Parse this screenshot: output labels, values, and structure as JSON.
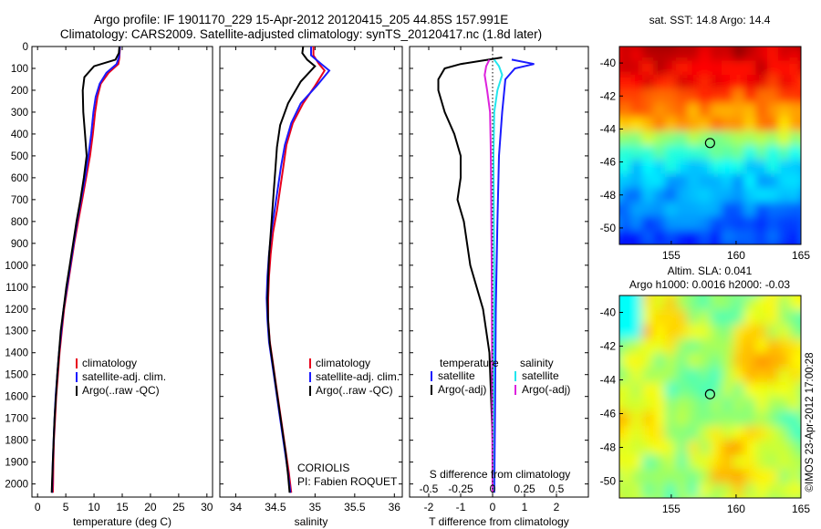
{
  "header": {
    "line1": "Argo profile: IF 1901170_229 15-Apr-2012 20120415_205 44.85S 157.991E",
    "line2": "Climatology: CARS2009. Satellite-adjusted climatology: synTS_20120417.nc (1.8d later)"
  },
  "colors": {
    "climatology": "#e8001c",
    "satellite": "#1a1aff",
    "argo": "#000000",
    "sal_satellite": "#22e6ee",
    "sal_argo": "#dd22dd"
  },
  "chart_data": [
    {
      "type": "line",
      "title": "",
      "xlabel": "temperature (deg C)",
      "ylabel": "",
      "xlim": [
        -1,
        31
      ],
      "ylim": [
        2060,
        0
      ],
      "y_inverted": true,
      "xticks": [
        0,
        5,
        10,
        15,
        20,
        25,
        30
      ],
      "yticks": [
        0,
        100,
        200,
        300,
        400,
        500,
        600,
        700,
        800,
        900,
        1000,
        1100,
        1200,
        1300,
        1400,
        1500,
        1600,
        1700,
        1800,
        1900,
        2000
      ],
      "legend": [
        "climatology",
        "satellite-adj. clim.",
        "Argo(..raw -QC)"
      ],
      "legend_position": "lower-center",
      "series": [
        {
          "name": "climatology",
          "color": "#e8001c",
          "points": [
            [
              14.6,
              0
            ],
            [
              14.5,
              50
            ],
            [
              14.3,
              80
            ],
            [
              12.6,
              120
            ],
            [
              11.2,
              170
            ],
            [
              10.6,
              230
            ],
            [
              10.2,
              300
            ],
            [
              9.8,
              400
            ],
            [
              9.3,
              500
            ],
            [
              8.6,
              600
            ],
            [
              7.9,
              700
            ],
            [
              7.2,
              800
            ],
            [
              6.5,
              900
            ],
            [
              5.9,
              1000
            ],
            [
              5.3,
              1100
            ],
            [
              4.7,
              1200
            ],
            [
              4.3,
              1300
            ],
            [
              3.9,
              1400
            ],
            [
              3.6,
              1500
            ],
            [
              3.3,
              1600
            ],
            [
              3.1,
              1700
            ],
            [
              2.9,
              1800
            ],
            [
              2.8,
              1900
            ],
            [
              2.75,
              2000
            ],
            [
              2.7,
              2040
            ]
          ]
        },
        {
          "name": "satellite-adj. clim.",
          "color": "#1a1aff",
          "points": [
            [
              14.6,
              0
            ],
            [
              14.4,
              50
            ],
            [
              14.0,
              80
            ],
            [
              12.2,
              120
            ],
            [
              11.0,
              170
            ],
            [
              10.3,
              230
            ],
            [
              9.9,
              300
            ],
            [
              9.5,
              400
            ],
            [
              9.0,
              500
            ],
            [
              8.4,
              600
            ],
            [
              7.7,
              700
            ],
            [
              7.0,
              800
            ],
            [
              6.4,
              900
            ],
            [
              5.8,
              1000
            ],
            [
              5.2,
              1100
            ],
            [
              4.6,
              1200
            ],
            [
              4.2,
              1300
            ],
            [
              3.8,
              1400
            ],
            [
              3.5,
              1500
            ],
            [
              3.2,
              1600
            ],
            [
              3.0,
              1700
            ],
            [
              2.85,
              1800
            ],
            [
              2.7,
              1900
            ],
            [
              2.6,
              2000
            ],
            [
              2.55,
              2040
            ]
          ]
        },
        {
          "name": "Argo(..raw -QC)",
          "color": "#000000",
          "points": [
            [
              14.5,
              0
            ],
            [
              14.4,
              30
            ],
            [
              13.8,
              60
            ],
            [
              10.0,
              90
            ],
            [
              8.3,
              140
            ],
            [
              8.0,
              200
            ],
            [
              8.1,
              300
            ],
            [
              8.4,
              400
            ],
            [
              8.7,
              500
            ],
            [
              8.2,
              600
            ],
            [
              7.6,
              700
            ],
            [
              6.9,
              800
            ],
            [
              6.3,
              900
            ],
            [
              5.7,
              1000
            ],
            [
              5.1,
              1100
            ],
            [
              4.6,
              1200
            ],
            [
              4.1,
              1300
            ],
            [
              3.8,
              1400
            ],
            [
              3.5,
              1500
            ],
            [
              3.25,
              1600
            ],
            [
              3.0,
              1700
            ],
            [
              2.85,
              1800
            ],
            [
              2.7,
              1900
            ],
            [
              2.55,
              2000
            ],
            [
              2.5,
              2040
            ]
          ]
        }
      ]
    },
    {
      "type": "line",
      "title": "",
      "xlabel": "salinity",
      "ylabel": "",
      "xlim": [
        33.8,
        36.1
      ],
      "ylim": [
        2060,
        0
      ],
      "y_inverted": true,
      "xticks": [
        34,
        34.5,
        35,
        35.5,
        36
      ],
      "legend": [
        "climatology",
        "satellite-adj. clim.",
        "Argo(..raw -QC)"
      ],
      "legend_position": "lower-right",
      "annotations": [
        "CORIOLIS",
        "PI: Fabien ROQUET"
      ],
      "series": [
        {
          "name": "climatology",
          "color": "#e8001c",
          "points": [
            [
              34.98,
              0
            ],
            [
              34.98,
              40
            ],
            [
              35.05,
              80
            ],
            [
              35.12,
              110
            ],
            [
              35.0,
              180
            ],
            [
              34.85,
              260
            ],
            [
              34.72,
              350
            ],
            [
              34.64,
              450
            ],
            [
              34.6,
              550
            ],
            [
              34.56,
              650
            ],
            [
              34.52,
              750
            ],
            [
              34.47,
              850
            ],
            [
              34.44,
              950
            ],
            [
              34.42,
              1050
            ],
            [
              34.41,
              1150
            ],
            [
              34.41,
              1250
            ],
            [
              34.43,
              1350
            ],
            [
              34.47,
              1450
            ],
            [
              34.51,
              1550
            ],
            [
              34.55,
              1650
            ],
            [
              34.59,
              1750
            ],
            [
              34.63,
              1850
            ],
            [
              34.67,
              1950
            ],
            [
              34.7,
              2040
            ]
          ]
        },
        {
          "name": "satellite-adj. clim.",
          "color": "#1a1aff",
          "points": [
            [
              34.95,
              0
            ],
            [
              34.95,
              40
            ],
            [
              35.08,
              80
            ],
            [
              35.18,
              110
            ],
            [
              35.02,
              180
            ],
            [
              34.82,
              260
            ],
            [
              34.7,
              350
            ],
            [
              34.62,
              450
            ],
            [
              34.57,
              550
            ],
            [
              34.53,
              650
            ],
            [
              34.49,
              750
            ],
            [
              34.45,
              850
            ],
            [
              34.42,
              950
            ],
            [
              34.4,
              1050
            ],
            [
              34.39,
              1150
            ],
            [
              34.4,
              1250
            ],
            [
              34.42,
              1350
            ],
            [
              34.46,
              1450
            ],
            [
              34.5,
              1550
            ],
            [
              34.54,
              1650
            ],
            [
              34.58,
              1750
            ],
            [
              34.62,
              1850
            ],
            [
              34.66,
              1950
            ],
            [
              34.69,
              2040
            ]
          ]
        },
        {
          "name": "Argo(..raw -QC)",
          "color": "#000000",
          "points": [
            [
              34.85,
              0
            ],
            [
              34.84,
              30
            ],
            [
              34.9,
              60
            ],
            [
              35.0,
              90
            ],
            [
              34.82,
              160
            ],
            [
              34.66,
              260
            ],
            [
              34.56,
              360
            ],
            [
              34.52,
              460
            ],
            [
              34.5,
              560
            ],
            [
              34.48,
              660
            ],
            [
              34.46,
              760
            ],
            [
              34.44,
              860
            ],
            [
              34.42,
              960
            ],
            [
              34.41,
              1060
            ],
            [
              34.4,
              1160
            ],
            [
              34.41,
              1260
            ],
            [
              34.43,
              1360
            ],
            [
              34.47,
              1460
            ],
            [
              34.51,
              1560
            ],
            [
              34.55,
              1660
            ],
            [
              34.59,
              1760
            ],
            [
              34.63,
              1860
            ],
            [
              34.66,
              1960
            ],
            [
              34.68,
              2040
            ]
          ]
        }
      ]
    },
    {
      "type": "line",
      "title": "",
      "xlabel": "T difference from climatology",
      "x2label": "S difference from climatology",
      "ylabel": "",
      "xlim": [
        -2.6,
        3.0
      ],
      "ylim": [
        2060,
        0
      ],
      "y_inverted": true,
      "xticks": [
        -2,
        -1,
        0,
        1,
        2
      ],
      "x2lim": [
        -0.65,
        0.75
      ],
      "x2ticks": [
        -0.5,
        -0.25,
        0,
        0.25,
        0.5
      ],
      "x2ticklabels": [
        "-0.5",
        "-0.25",
        "0",
        "0.25",
        "0.5"
      ],
      "legend": [
        "temperature",
        "satellite",
        "Argo(-adj)",
        "salinity",
        "satellite",
        "Argo(-adj)"
      ],
      "legend_position": "lower-center",
      "series": [
        {
          "name": "T satellite",
          "color": "#1a1aff",
          "points": [
            [
              0.6,
              60
            ],
            [
              1.3,
              80
            ],
            [
              0.7,
              100
            ],
            [
              0.4,
              150
            ],
            [
              0.3,
              300
            ],
            [
              0.2,
              500
            ],
            [
              0.15,
              800
            ],
            [
              0.1,
              1200
            ],
            [
              0.08,
              1600
            ],
            [
              0.05,
              2040
            ]
          ]
        },
        {
          "name": "T Argo(-adj)",
          "color": "#000000",
          "points": [
            [
              0.3,
              50
            ],
            [
              -1.0,
              80
            ],
            [
              -1.5,
              100
            ],
            [
              -1.7,
              150
            ],
            [
              -1.7,
              200
            ],
            [
              -1.5,
              300
            ],
            [
              -1.2,
              400
            ],
            [
              -1.0,
              500
            ],
            [
              -1.0,
              600
            ],
            [
              -1.1,
              700
            ],
            [
              -0.9,
              800
            ],
            [
              -0.8,
              900
            ],
            [
              -0.7,
              1000
            ],
            [
              -0.5,
              1100
            ],
            [
              -0.3,
              1200
            ],
            [
              -0.2,
              1300
            ],
            [
              -0.1,
              1400
            ],
            [
              -0.05,
              1600
            ],
            [
              0,
              1800
            ],
            [
              0,
              2040
            ]
          ]
        },
        {
          "name": "S satellite",
          "color": "#22e6ee",
          "points": [
            [
              0.05,
              60
            ],
            [
              0.2,
              90
            ],
            [
              0.3,
              130
            ],
            [
              0.15,
              200
            ],
            [
              0.05,
              300
            ],
            [
              0.03,
              500
            ],
            [
              0.04,
              800
            ],
            [
              0.05,
              1100
            ],
            [
              0.04,
              1500
            ],
            [
              0.02,
              1800
            ],
            [
              0.01,
              2040
            ]
          ]
        },
        {
          "name": "S Argo(-adj)",
          "color": "#dd22dd",
          "points": [
            [
              -0.1,
              60
            ],
            [
              -0.2,
              90
            ],
            [
              -0.25,
              130
            ],
            [
              -0.17,
              200
            ],
            [
              -0.08,
              300
            ],
            [
              -0.06,
              450
            ],
            [
              -0.05,
              600
            ],
            [
              -0.04,
              800
            ],
            [
              -0.03,
              1000
            ],
            [
              -0.02,
              1300
            ],
            [
              -0.01,
              1700
            ],
            [
              0.0,
              2040
            ]
          ]
        }
      ]
    },
    {
      "type": "heatmap",
      "title": "sat. SST: 14.8 Argo: 14.4",
      "xlim": [
        151,
        165
      ],
      "ylim": [
        -51,
        -39
      ],
      "xticks": [
        155,
        160,
        165
      ],
      "yticks": [
        -40,
        -42,
        -44,
        -46,
        -48,
        -50
      ],
      "marker": {
        "lon": 157.99,
        "lat": -44.85
      }
    },
    {
      "type": "heatmap",
      "title": "Altim. SLA: 0.041",
      "subtitle": "Argo h1000: 0.0016 h2000: -0.03",
      "xlim": [
        151,
        165
      ],
      "ylim": [
        -51,
        -39
      ],
      "xticks": [
        155,
        160,
        165
      ],
      "yticks": [
        -40,
        -42,
        -44,
        -46,
        -48,
        -50
      ],
      "marker": {
        "lon": 157.99,
        "lat": -44.85
      }
    }
  ],
  "side_label": "©IMOS 23-Apr-2012 17:00:28"
}
